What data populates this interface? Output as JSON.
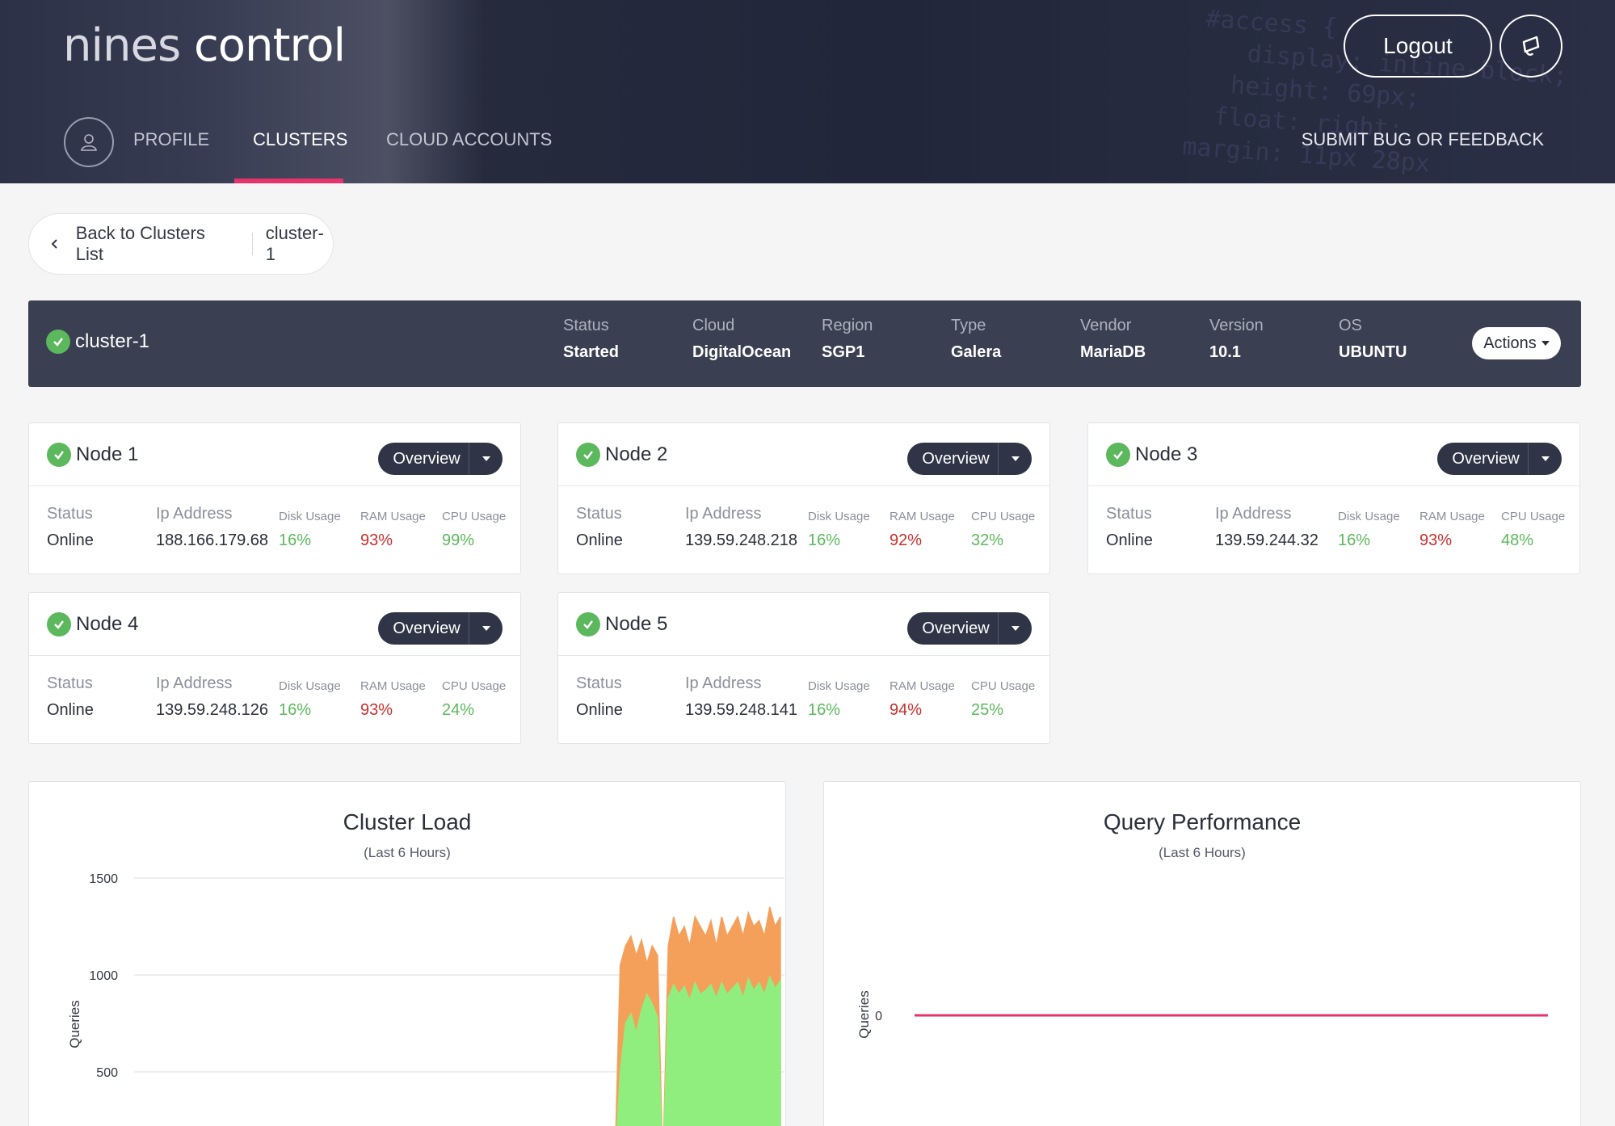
{
  "header": {
    "logo_a": "nines",
    "logo_b": "control",
    "logout_label": "Logout",
    "nav": {
      "profile": "PROFILE",
      "clusters": "CLUSTERS",
      "cloud_accounts": "CLOUD ACCOUNTS",
      "feedback": "SUBMIT BUG OR FEEDBACK"
    }
  },
  "breadcrumb": {
    "back": "Back to Clusters List",
    "current": "cluster-1"
  },
  "cluster": {
    "name": "cluster-1",
    "meta": [
      {
        "label": "Status",
        "value": "Started"
      },
      {
        "label": "Cloud",
        "value": "DigitalOcean"
      },
      {
        "label": "Region",
        "value": "SGP1"
      },
      {
        "label": "Type",
        "value": "Galera"
      },
      {
        "label": "Vendor",
        "value": "MariaDB"
      },
      {
        "label": "Version",
        "value": "10.1"
      },
      {
        "label": "OS",
        "value": "UBUNTU"
      }
    ],
    "actions_label": "Actions"
  },
  "node_labels": {
    "status": "Status",
    "ip": "Ip Address",
    "disk": "Disk Usage",
    "ram": "RAM Usage",
    "cpu": "CPU Usage",
    "overview": "Overview"
  },
  "nodes": [
    {
      "name": "Node 1",
      "status": "Online",
      "ip": "188.166.179.68",
      "disk": "16%",
      "ram": "93%",
      "cpu": "99%"
    },
    {
      "name": "Node 2",
      "status": "Online",
      "ip": "139.59.248.218",
      "disk": "16%",
      "ram": "92%",
      "cpu": "32%"
    },
    {
      "name": "Node 3",
      "status": "Online",
      "ip": "139.59.244.32",
      "disk": "16%",
      "ram": "93%",
      "cpu": "48%"
    },
    {
      "name": "Node 4",
      "status": "Online",
      "ip": "139.59.248.126",
      "disk": "16%",
      "ram": "93%",
      "cpu": "24%"
    },
    {
      "name": "Node 5",
      "status": "Online",
      "ip": "139.59.248.141",
      "disk": "16%",
      "ram": "94%",
      "cpu": "25%"
    }
  ],
  "colors": {
    "green": "#5cb85c",
    "red": "#c9302c",
    "accent": "#e5336b",
    "orange": "#f5a05a",
    "lightgreen": "#90ee7e"
  },
  "chart_data": [
    {
      "type": "area",
      "title": "Cluster Load",
      "subtitle": "(Last 6 Hours)",
      "ylabel": "Queries",
      "yticks": [
        500,
        1000,
        1500
      ],
      "ylim": [
        0,
        1500
      ],
      "series": [
        {
          "values": [
            0,
            0,
            0,
            0,
            0,
            0,
            0,
            0,
            0,
            0,
            0,
            0,
            0,
            0,
            0,
            0,
            0,
            0,
            0,
            0,
            0,
            0,
            0,
            0,
            0,
            0,
            0,
            0,
            0,
            0,
            0,
            0,
            0,
            0,
            0,
            0,
            0,
            0,
            0,
            0,
            0,
            0,
            0,
            0,
            0,
            0,
            0,
            0,
            0,
            0,
            0,
            0,
            0,
            0,
            0,
            0,
            0,
            0,
            0,
            0,
            0,
            0,
            0,
            0,
            0,
            0,
            0,
            0,
            0,
            0,
            0,
            0,
            0,
            0,
            0,
            0,
            0,
            0,
            0,
            0,
            0,
            0,
            0,
            0,
            0,
            0,
            0,
            0,
            0,
            0,
            0,
            1050,
            1150,
            1200,
            1100,
            1180,
            1060,
            1150,
            1100,
            0,
            1150,
            1300,
            1200,
            1250,
            1150,
            1300,
            1250,
            1200,
            1280,
            1150,
            1300,
            1200,
            1250,
            1300,
            1200,
            1320,
            1250,
            1280,
            1200,
            1350,
            1250,
            1300
          ]
        },
        {
          "values": [
            0,
            0,
            0,
            0,
            0,
            0,
            0,
            0,
            0,
            0,
            0,
            0,
            0,
            0,
            0,
            0,
            0,
            0,
            0,
            0,
            0,
            0,
            0,
            0,
            0,
            0,
            0,
            0,
            0,
            0,
            0,
            0,
            0,
            0,
            0,
            0,
            0,
            0,
            0,
            0,
            0,
            0,
            0,
            0,
            0,
            0,
            0,
            0,
            0,
            0,
            0,
            0,
            0,
            0,
            0,
            0,
            0,
            0,
            0,
            0,
            0,
            0,
            0,
            0,
            0,
            0,
            0,
            0,
            0,
            0,
            0,
            0,
            0,
            0,
            0,
            0,
            0,
            0,
            0,
            0,
            0,
            0,
            0,
            0,
            0,
            0,
            0,
            0,
            0,
            0,
            0,
            500,
            750,
            800,
            700,
            820,
            900,
            850,
            780,
            0,
            880,
            950,
            900,
            940,
            870,
            960,
            900,
            920,
            950,
            880,
            960,
            900,
            930,
            960,
            880,
            980,
            920,
            960,
            900,
            990,
            930,
            970
          ]
        }
      ]
    },
    {
      "type": "line",
      "title": "Query Performance",
      "subtitle": "(Last 6 Hours)",
      "ylabel": "Queries",
      "yticks": [
        0
      ],
      "series": [
        {
          "values": [
            0,
            0
          ]
        }
      ]
    }
  ]
}
